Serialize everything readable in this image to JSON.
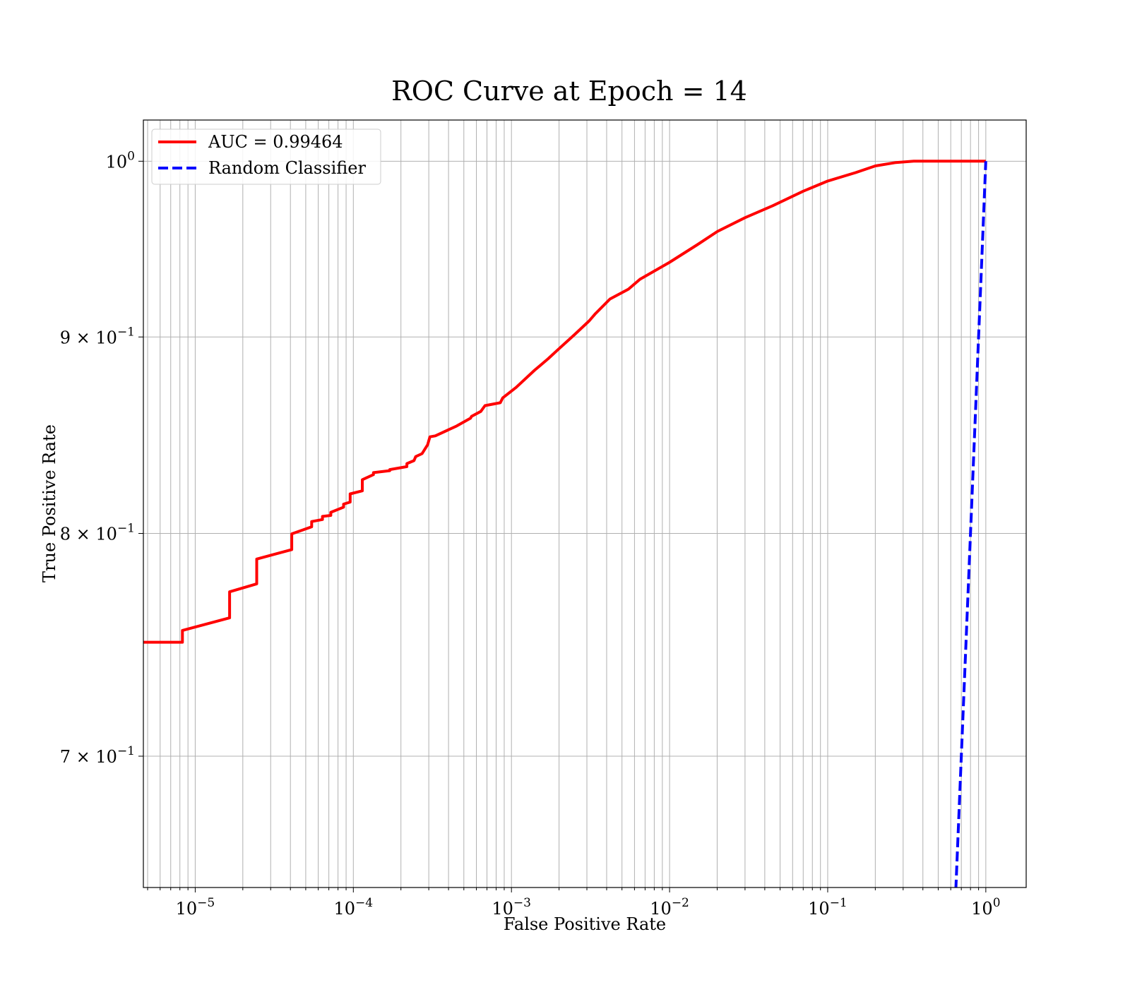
{
  "chart_data": {
    "type": "line",
    "title": "ROC Curve at Epoch = 14",
    "xlabel": "False Positive Rate",
    "ylabel": "True Positive Rate",
    "xscale": "log",
    "yscale": "log",
    "xlim": [
      4.7e-06,
      1.8
    ],
    "ylim": [
      0.647,
      1.025
    ],
    "grid": true,
    "grid_minor": true,
    "legend_position": "upper-left",
    "x_ticks": [
      {
        "value": 1e-05,
        "base": "10",
        "exp": "−5"
      },
      {
        "value": 0.0001,
        "base": "10",
        "exp": "−4"
      },
      {
        "value": 0.001,
        "base": "10",
        "exp": "−3"
      },
      {
        "value": 0.01,
        "base": "10",
        "exp": "−2"
      },
      {
        "value": 0.1,
        "base": "10",
        "exp": "−1"
      },
      {
        "value": 1,
        "base": "10",
        "exp": "0"
      }
    ],
    "y_ticks": [
      {
        "value": 1.0,
        "base": "10",
        "exp": "0"
      },
      {
        "value": 0.9,
        "base": "9 × 10",
        "exp": "−1"
      },
      {
        "value": 0.8,
        "base": "8 × 10",
        "exp": "−1"
      },
      {
        "value": 0.7,
        "base": "7 × 10",
        "exp": "−1"
      }
    ],
    "series": [
      {
        "name": "AUC = 0.99464",
        "color": "#ff0000",
        "style": "solid",
        "x": [
          4.7e-06,
          8.3e-06,
          8.3e-06,
          1.65e-05,
          1.65e-05,
          2.45e-05,
          2.45e-05,
          4.08e-05,
          4.08e-05,
          5.45e-05,
          5.45e-05,
          6.38e-05,
          6.38e-05,
          7.2e-05,
          7.2e-05,
          8.68e-05,
          8.68e-05,
          9.55e-05,
          9.55e-05,
          0.000114,
          0.000114,
          0.000134,
          0.000134,
          0.00017,
          0.00017,
          0.000218,
          0.000218,
          0.000242,
          0.000248,
          0.000272,
          0.000295,
          0.000305,
          0.00033,
          0.00045,
          0.00055,
          0.00056,
          0.00064,
          0.00068,
          0.00085,
          0.00088,
          0.00107,
          0.0014,
          0.0017,
          0.002,
          0.0025,
          0.0031,
          0.0034,
          0.0042,
          0.0055,
          0.0065,
          0.01,
          0.015,
          0.02,
          0.03,
          0.045,
          0.07,
          0.1,
          0.15,
          0.2,
          0.27,
          0.35,
          1.0
        ],
        "y": [
          0.7495,
          0.7495,
          0.7548,
          0.7605,
          0.7725,
          0.7762,
          0.7878,
          0.7923,
          0.7998,
          0.8032,
          0.8057,
          0.8067,
          0.8082,
          0.8087,
          0.8102,
          0.8127,
          0.8142,
          0.8152,
          0.8192,
          0.8207,
          0.8262,
          0.8287,
          0.8297,
          0.8307,
          0.8312,
          0.8327,
          0.8342,
          0.8357,
          0.8377,
          0.8392,
          0.8437,
          0.8477,
          0.8482,
          0.8532,
          0.8572,
          0.8582,
          0.8607,
          0.8637,
          0.8652,
          0.8677,
          0.8732,
          0.8822,
          0.8882,
          0.8937,
          0.9012,
          0.9087,
          0.9127,
          0.9207,
          0.9262,
          0.9317,
          0.9412,
          0.9512,
          0.9587,
          0.9667,
          0.9737,
          0.9822,
          0.9882,
          0.9932,
          0.9972,
          0.9992,
          1.0,
          1.0
        ]
      },
      {
        "name": "Random Classifier",
        "color": "#0000ff",
        "style": "dashed",
        "x": [
          0.63,
          0.67,
          0.72,
          0.78,
          0.84,
          0.9,
          0.96,
          1.0
        ],
        "y": [
          0.63,
          0.67,
          0.72,
          0.78,
          0.84,
          0.9,
          0.96,
          1.0
        ]
      }
    ]
  }
}
